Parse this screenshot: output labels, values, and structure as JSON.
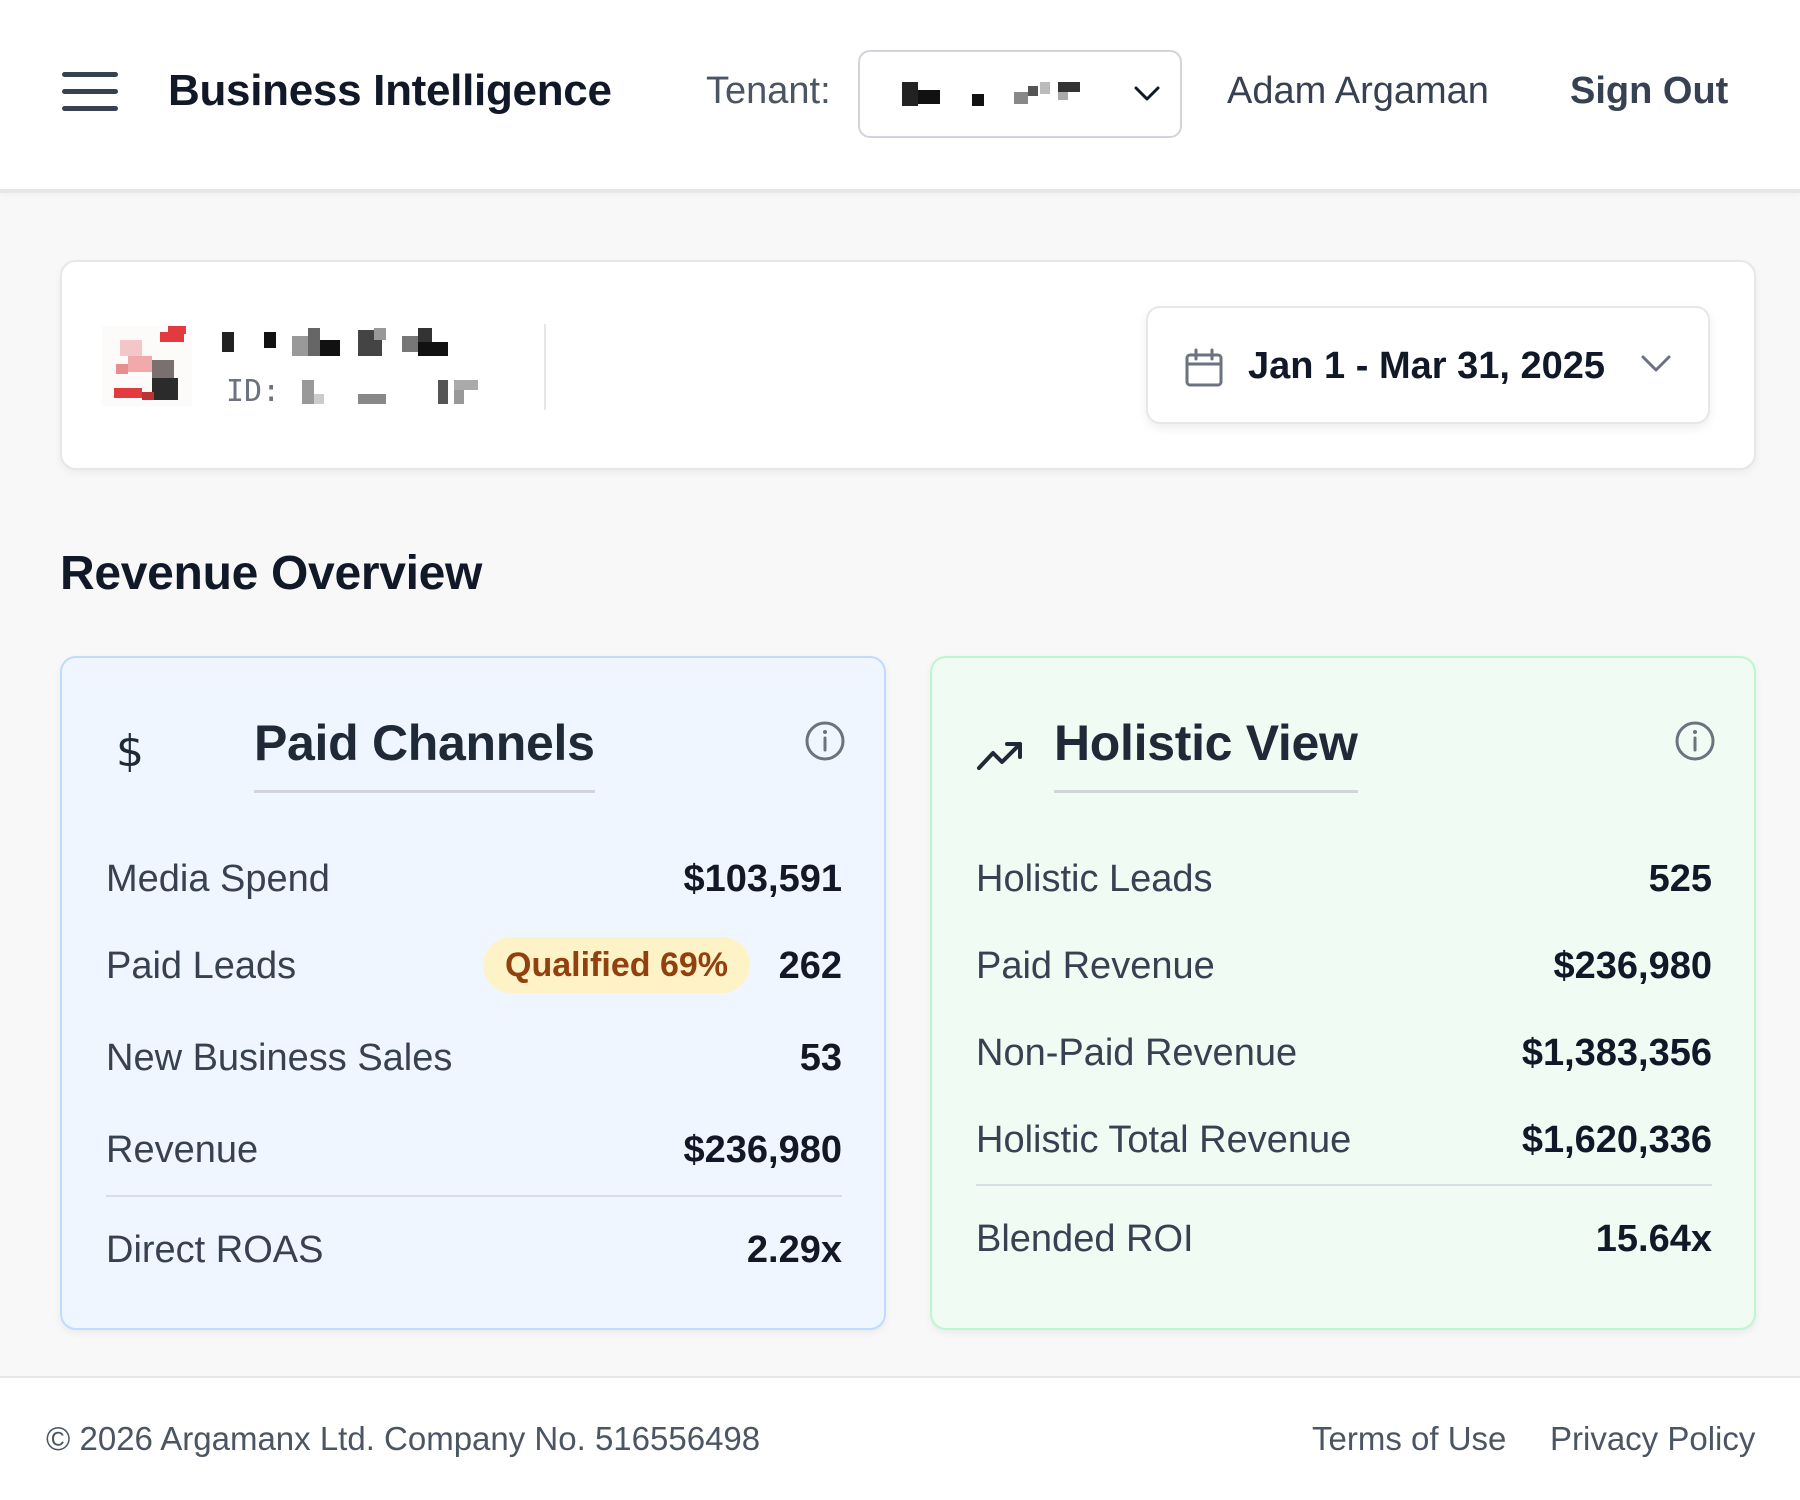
{
  "header": {
    "app_title": "Business Intelligence",
    "tenant_label": "Tenant:",
    "user_name": "Adam Argaman",
    "sign_out_label": "Sign Out"
  },
  "client": {
    "id_label": "ID:"
  },
  "date_range": {
    "label": "Jan 1 - Mar 31, 2025"
  },
  "section": {
    "title": "Revenue Overview"
  },
  "paid_channels": {
    "title": "Paid Channels",
    "icon": "dollar-icon",
    "rows": [
      {
        "label": "Media Spend",
        "value": "$103,591"
      },
      {
        "label": "Paid Leads",
        "value": "262",
        "badge": "Qualified 69%"
      },
      {
        "label": "New Business Sales",
        "value": "53"
      },
      {
        "label": "Revenue",
        "value": "$236,980"
      }
    ],
    "summary": {
      "label": "Direct ROAS",
      "value": "2.29x"
    }
  },
  "holistic_view": {
    "title": "Holistic View",
    "icon": "trending-up-icon",
    "rows": [
      {
        "label": "Holistic Leads",
        "value": "525"
      },
      {
        "label": "Paid Revenue",
        "value": "$236,980"
      },
      {
        "label": "Non-Paid Revenue",
        "value": "$1,383,356"
      },
      {
        "label": "Holistic Total Revenue",
        "value": "$1,620,336"
      }
    ],
    "summary": {
      "label": "Blended ROI",
      "value": "15.64x"
    }
  },
  "footer": {
    "copyright": "© 2026 Argamanx Ltd. Company No. 516556498",
    "terms_label": "Terms of Use",
    "privacy_label": "Privacy Policy"
  },
  "colors": {
    "paid_card_bg": "#eff6ff",
    "paid_card_border": "#bfdbfe",
    "holistic_card_bg": "#effbf3",
    "holistic_card_border": "#bbf7d0",
    "badge_bg": "#fef3c7",
    "badge_text": "#92400e"
  }
}
